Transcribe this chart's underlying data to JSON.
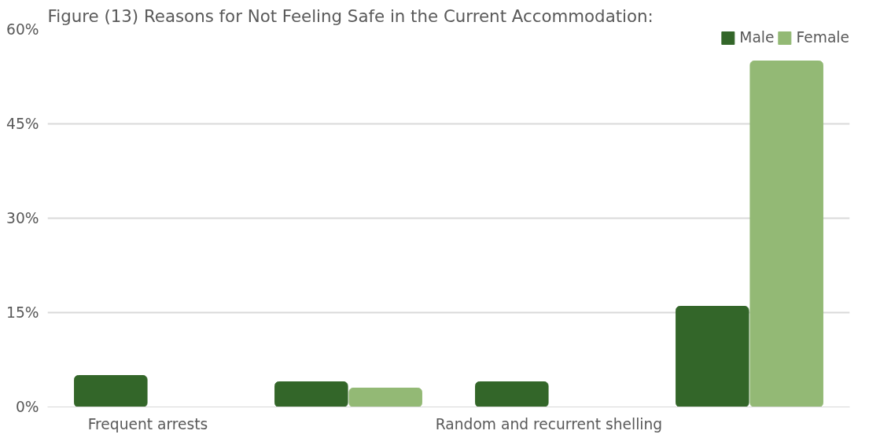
{
  "chart_data": {
    "type": "bar",
    "title": "Figure (13) Reasons for Not Feeling Safe in the Current Accommodation:",
    "categories": [
      "Frequent arrests",
      null,
      "Random and recurrent shelling",
      null
    ],
    "series": [
      {
        "name": "Male",
        "color": "#336629",
        "values": [
          5,
          4,
          4,
          16
        ]
      },
      {
        "name": "Female",
        "color": "#93b975",
        "values": [
          null,
          3,
          null,
          55
        ]
      }
    ],
    "ylim": [
      0,
      60
    ],
    "yticks": [
      {
        "value": 0,
        "label": "0%"
      },
      {
        "value": 15,
        "label": "15%"
      },
      {
        "value": 30,
        "label": "30%"
      },
      {
        "value": 45,
        "label": "45%"
      },
      {
        "value": 60,
        "label": "60%"
      }
    ],
    "grid": "y",
    "legend": "top right"
  }
}
